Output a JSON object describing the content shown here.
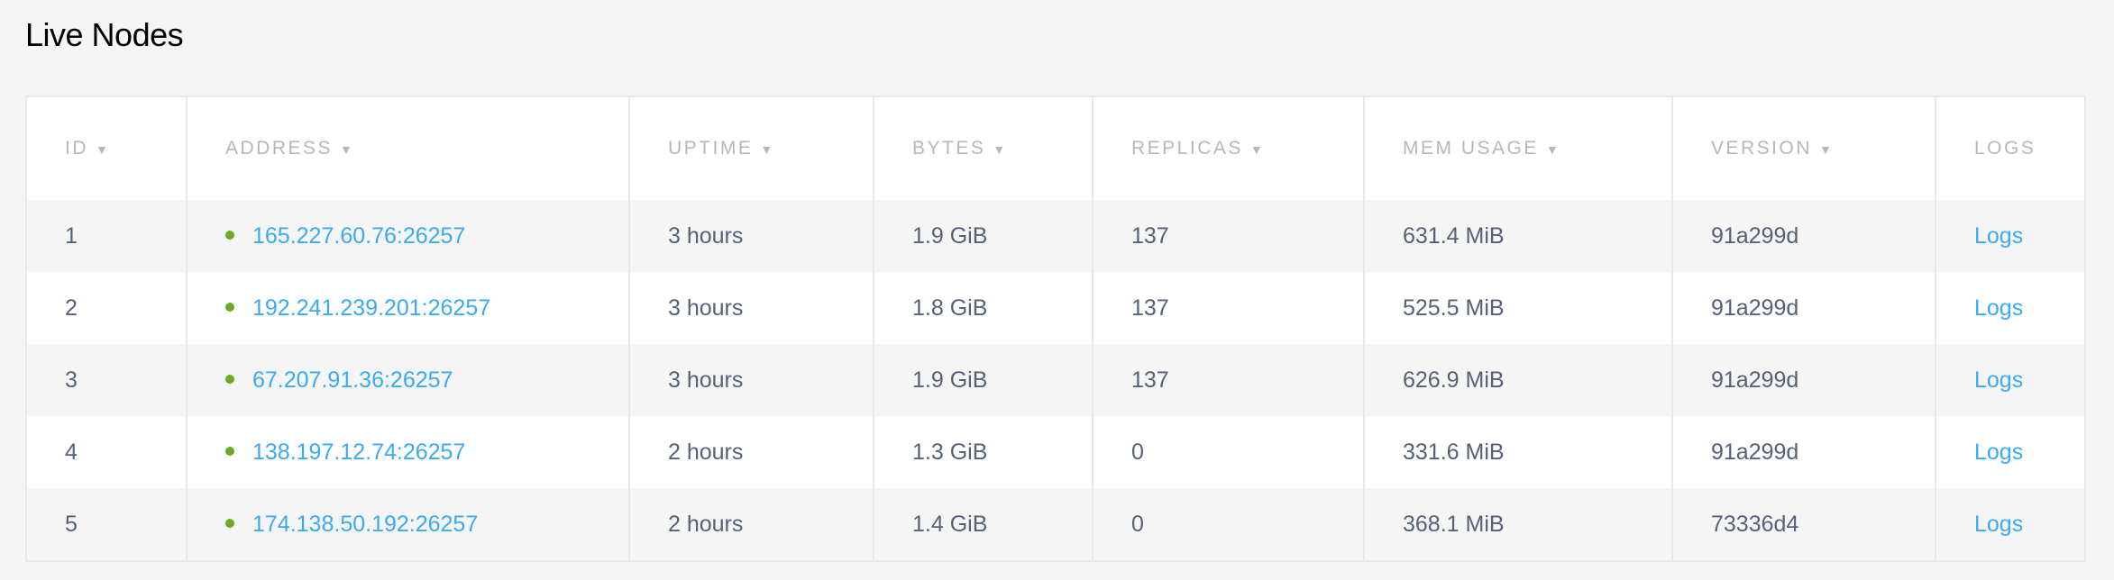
{
  "title": "Live Nodes",
  "colors": {
    "link": "#3aaaf5",
    "status_live": "#6aa92a",
    "text": "#55607a",
    "header": "#b5b8ba"
  },
  "columns": [
    {
      "label": "ID",
      "sortable": true
    },
    {
      "label": "ADDRESS",
      "sortable": true
    },
    {
      "label": "UPTIME",
      "sortable": true
    },
    {
      "label": "BYTES",
      "sortable": true
    },
    {
      "label": "REPLICAS",
      "sortable": true
    },
    {
      "label": "MEM USAGE",
      "sortable": true
    },
    {
      "label": "VERSION",
      "sortable": true
    },
    {
      "label": "LOGS",
      "sortable": false
    }
  ],
  "sort_icon": "▼",
  "rows": [
    {
      "id": "1",
      "address": "165.227.60.76:26257",
      "uptime": "3 hours",
      "bytes": "1.9 GiB",
      "replicas": "137",
      "mem": "631.4 MiB",
      "version": "91a299d",
      "logs": "Logs"
    },
    {
      "id": "2",
      "address": "192.241.239.201:26257",
      "uptime": "3 hours",
      "bytes": "1.8 GiB",
      "replicas": "137",
      "mem": "525.5 MiB",
      "version": "91a299d",
      "logs": "Logs"
    },
    {
      "id": "3",
      "address": "67.207.91.36:26257",
      "uptime": "3 hours",
      "bytes": "1.9 GiB",
      "replicas": "137",
      "mem": "626.9 MiB",
      "version": "91a299d",
      "logs": "Logs"
    },
    {
      "id": "4",
      "address": "138.197.12.74:26257",
      "uptime": "2 hours",
      "bytes": "1.3 GiB",
      "replicas": "0",
      "mem": "331.6 MiB",
      "version": "91a299d",
      "logs": "Logs"
    },
    {
      "id": "5",
      "address": "174.138.50.192:26257",
      "uptime": "2 hours",
      "bytes": "1.4 GiB",
      "replicas": "0",
      "mem": "368.1 MiB",
      "version": "73336d4",
      "logs": "Logs"
    }
  ]
}
